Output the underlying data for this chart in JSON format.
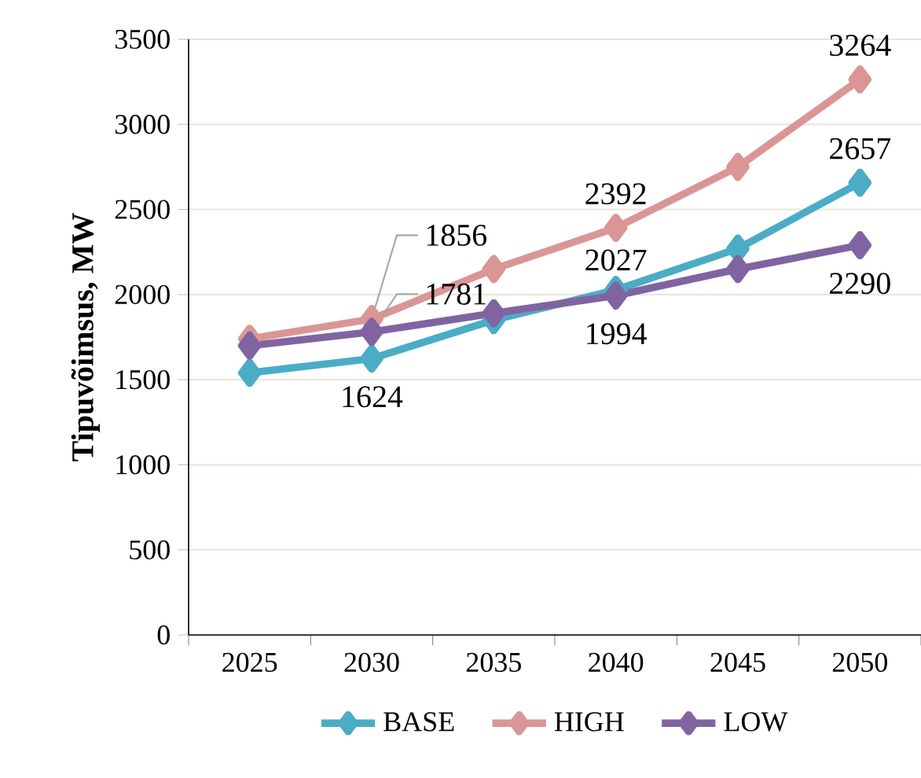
{
  "chart_data": {
    "type": "line",
    "ylabel": "Tipuvõimsus, MW",
    "categories": [
      "2025",
      "2030",
      "2035",
      "2040",
      "2045",
      "2050"
    ],
    "series": [
      {
        "name": "BASE",
        "color": "#4bacc6",
        "values": [
          1540,
          1624,
          1850,
          2027,
          2270,
          2657
        ],
        "value_labels": [
          null,
          "1624",
          null,
          "2027",
          null,
          "2657"
        ]
      },
      {
        "name": "HIGH",
        "color": "#d99694",
        "values": [
          1740,
          1856,
          2150,
          2392,
          2750,
          3264
        ],
        "value_labels": [
          null,
          "1856",
          null,
          "2392",
          null,
          "3264"
        ]
      },
      {
        "name": "LOW",
        "color": "#8064a2",
        "values": [
          1700,
          1781,
          1890,
          1994,
          2150,
          2290
        ],
        "value_labels": [
          null,
          "1781",
          null,
          "1994",
          null,
          "2290"
        ]
      }
    ],
    "ylim": [
      0,
      3500
    ],
    "yticks": [
      0,
      500,
      1000,
      1500,
      2000,
      2500,
      3000,
      3500
    ],
    "grid": "y",
    "legend": "bottom",
    "marker": "diamond",
    "line_style": "solid"
  }
}
